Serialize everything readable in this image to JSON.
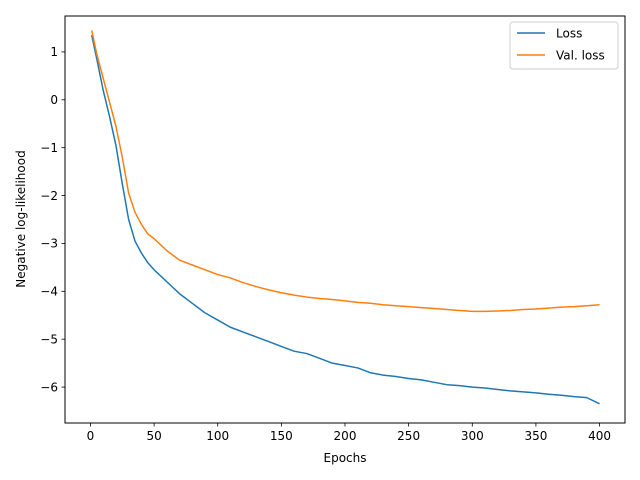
{
  "chart_data": {
    "type": "line",
    "title": "",
    "xlabel": "Epochs",
    "ylabel": "Negative log-likelihood",
    "xlim": [
      -20,
      420
    ],
    "ylim": [
      -6.75,
      1.75
    ],
    "xticks": [
      0,
      50,
      100,
      150,
      200,
      250,
      300,
      350,
      400
    ],
    "xtick_labels": [
      "0",
      "50",
      "100",
      "150",
      "200",
      "250",
      "300",
      "350",
      "400"
    ],
    "yticks": [
      1,
      0,
      -1,
      -2,
      -3,
      -4,
      -5,
      -6
    ],
    "ytick_labels": [
      "1",
      "0",
      "−1",
      "−2",
      "−3",
      "−4",
      "−5",
      "−6"
    ],
    "grid": false,
    "legend_position": "top-right",
    "series": [
      {
        "name": "Loss",
        "color": "#1f77b4",
        "points": [
          [
            1,
            1.35
          ],
          [
            5,
            0.85
          ],
          [
            10,
            0.2
          ],
          [
            15,
            -0.35
          ],
          [
            20,
            -0.95
          ],
          [
            25,
            -1.75
          ],
          [
            30,
            -2.5
          ],
          [
            35,
            -2.95
          ],
          [
            40,
            -3.2
          ],
          [
            45,
            -3.4
          ],
          [
            50,
            -3.55
          ],
          [
            60,
            -3.8
          ],
          [
            70,
            -4.05
          ],
          [
            80,
            -4.25
          ],
          [
            90,
            -4.45
          ],
          [
            100,
            -4.6
          ],
          [
            110,
            -4.75
          ],
          [
            120,
            -4.85
          ],
          [
            130,
            -4.95
          ],
          [
            140,
            -5.05
          ],
          [
            150,
            -5.15
          ],
          [
            160,
            -5.25
          ],
          [
            170,
            -5.3
          ],
          [
            180,
            -5.4
          ],
          [
            190,
            -5.5
          ],
          [
            200,
            -5.55
          ],
          [
            210,
            -5.6
          ],
          [
            220,
            -5.7
          ],
          [
            230,
            -5.75
          ],
          [
            240,
            -5.78
          ],
          [
            250,
            -5.82
          ],
          [
            260,
            -5.85
          ],
          [
            270,
            -5.9
          ],
          [
            280,
            -5.95
          ],
          [
            290,
            -5.97
          ],
          [
            300,
            -6.0
          ],
          [
            310,
            -6.02
          ],
          [
            320,
            -6.05
          ],
          [
            330,
            -6.08
          ],
          [
            340,
            -6.1
          ],
          [
            350,
            -6.12
          ],
          [
            360,
            -6.15
          ],
          [
            370,
            -6.17
          ],
          [
            380,
            -6.2
          ],
          [
            390,
            -6.22
          ],
          [
            400,
            -6.35
          ]
        ]
      },
      {
        "name": "Val. loss",
        "color": "#ff7f0e",
        "points": [
          [
            1,
            1.45
          ],
          [
            5,
            0.95
          ],
          [
            10,
            0.45
          ],
          [
            15,
            -0.05
          ],
          [
            20,
            -0.55
          ],
          [
            25,
            -1.2
          ],
          [
            30,
            -1.95
          ],
          [
            35,
            -2.35
          ],
          [
            40,
            -2.6
          ],
          [
            45,
            -2.8
          ],
          [
            50,
            -2.9
          ],
          [
            60,
            -3.15
          ],
          [
            70,
            -3.35
          ],
          [
            80,
            -3.45
          ],
          [
            90,
            -3.55
          ],
          [
            100,
            -3.65
          ],
          [
            110,
            -3.72
          ],
          [
            120,
            -3.82
          ],
          [
            130,
            -3.9
          ],
          [
            140,
            -3.97
          ],
          [
            150,
            -4.03
          ],
          [
            160,
            -4.08
          ],
          [
            170,
            -4.12
          ],
          [
            180,
            -4.15
          ],
          [
            190,
            -4.17
          ],
          [
            200,
            -4.2
          ],
          [
            210,
            -4.23
          ],
          [
            220,
            -4.25
          ],
          [
            230,
            -4.28
          ],
          [
            240,
            -4.3
          ],
          [
            250,
            -4.32
          ],
          [
            260,
            -4.34
          ],
          [
            270,
            -4.36
          ],
          [
            280,
            -4.38
          ],
          [
            290,
            -4.4
          ],
          [
            300,
            -4.42
          ],
          [
            310,
            -4.42
          ],
          [
            320,
            -4.41
          ],
          [
            330,
            -4.4
          ],
          [
            340,
            -4.38
          ],
          [
            350,
            -4.37
          ],
          [
            360,
            -4.35
          ],
          [
            370,
            -4.33
          ],
          [
            380,
            -4.32
          ],
          [
            390,
            -4.3
          ],
          [
            400,
            -4.28
          ]
        ]
      }
    ]
  }
}
